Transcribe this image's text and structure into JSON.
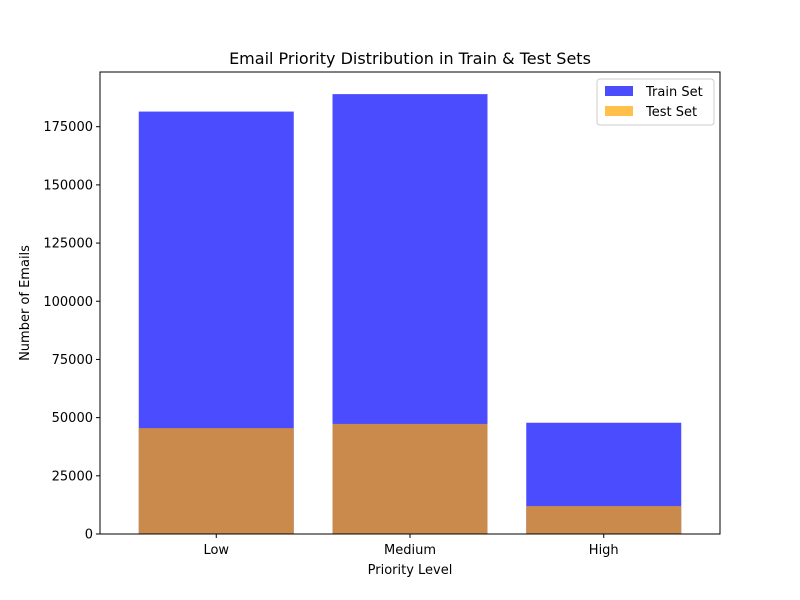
{
  "chart_data": {
    "type": "bar",
    "title": "Email Priority Distribution in Train & Test Sets",
    "xlabel": "Priority Level",
    "ylabel": "Number of Emails",
    "categories": [
      "Low",
      "Medium",
      "High"
    ],
    "series": [
      {
        "name": "Train Set",
        "values": [
          181500,
          189000,
          47800
        ],
        "color": "#0000ff",
        "opacity": 0.7
      },
      {
        "name": "Test Set",
        "values": [
          45500,
          47300,
          12000
        ],
        "color": "#ffa500",
        "opacity": 0.7
      }
    ],
    "ylim": [
      0,
      198500
    ],
    "yticks": [
      0,
      25000,
      50000,
      75000,
      100000,
      125000,
      150000,
      175000
    ],
    "ytick_labels": [
      "0",
      "25000",
      "50000",
      "75000",
      "100000",
      "125000",
      "150000",
      "175000"
    ],
    "legend_position": "upper right",
    "grid": false,
    "overlay": true
  }
}
